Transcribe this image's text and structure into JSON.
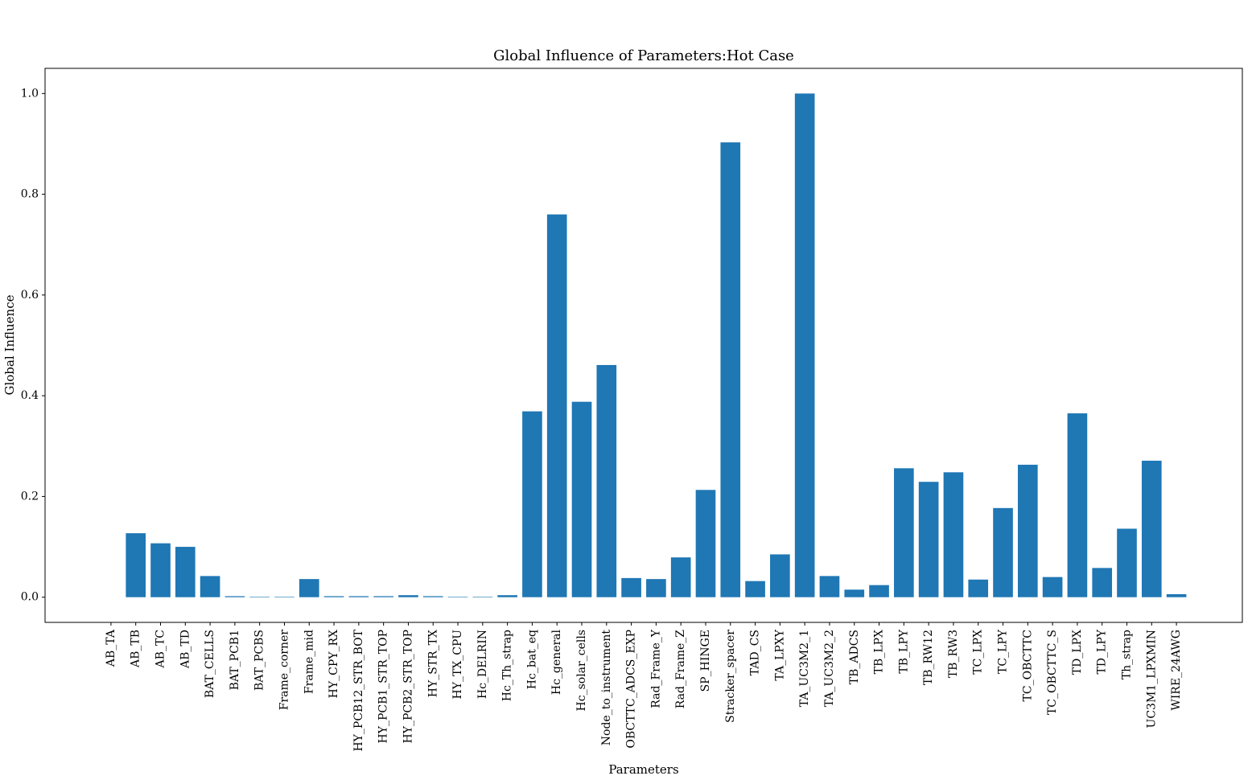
{
  "chart_data": {
    "type": "bar",
    "title": "Global Influence of Parameters:Hot Case",
    "xlabel": "Parameters",
    "ylabel": "Global Influence",
    "ylim": [
      -0.05,
      1.05
    ],
    "yticks": [
      0.0,
      0.2,
      0.4,
      0.6,
      0.8,
      1.0
    ],
    "ytick_labels": [
      "0.0",
      "0.2",
      "0.4",
      "0.6",
      "0.8",
      "1.0"
    ],
    "bar_color": "#1f77b4",
    "grid": false,
    "categories": [
      "AB_TA",
      "AB_TB",
      "AB_TC",
      "AB_TD",
      "BAT_CELLS",
      "BAT_PCB1",
      "BAT_PCBS",
      "Frame_corner",
      "Frame_mid",
      "HY_CPY_RX",
      "HY_PCB12_STR_BOT",
      "HY_PCB1_STR_TOP",
      "HY_PCB2_STR_TOP",
      "HY_STR_TX",
      "HY_TX_CPU",
      "Hc_DELRIN",
      "Hc_Th_strap",
      "Hc_bat_eq",
      "Hc_general",
      "Hc_solar_cells",
      "Node_to_instrument",
      "OBCTTC_ADCS_EXP",
      "Rad_Frame_Y",
      "Rad_Frame_Z",
      "SP_HINGE",
      "Stracker_spacer",
      "TAD_CS",
      "TA_LPXY",
      "TA_UC3M2_1",
      "TA_UC3M2_2",
      "TB_ADCS",
      "TB_LPX",
      "TB_LPY",
      "TB_RW12",
      "TB_RW3",
      "TC_LPX",
      "TC_LPY",
      "TC_OBCTTC",
      "TC_OBCTTC_S",
      "TD_LPX",
      "TD_LPY",
      "Th_strap",
      "UC3M1_LPXMIN",
      "WIRE_24AWG"
    ],
    "values": [
      0.0,
      0.127,
      0.107,
      0.1,
      0.042,
      0.002,
      0.001,
      0.001,
      0.036,
      0.002,
      0.002,
      0.002,
      0.004,
      0.002,
      0.001,
      0.001,
      0.004,
      0.369,
      0.76,
      0.388,
      0.461,
      0.038,
      0.036,
      0.079,
      0.213,
      0.903,
      0.032,
      0.085,
      1.0,
      0.042,
      0.015,
      0.024,
      0.256,
      0.229,
      0.248,
      0.035,
      0.177,
      0.263,
      0.04,
      0.365,
      0.058,
      0.136,
      0.271,
      0.006
    ]
  }
}
